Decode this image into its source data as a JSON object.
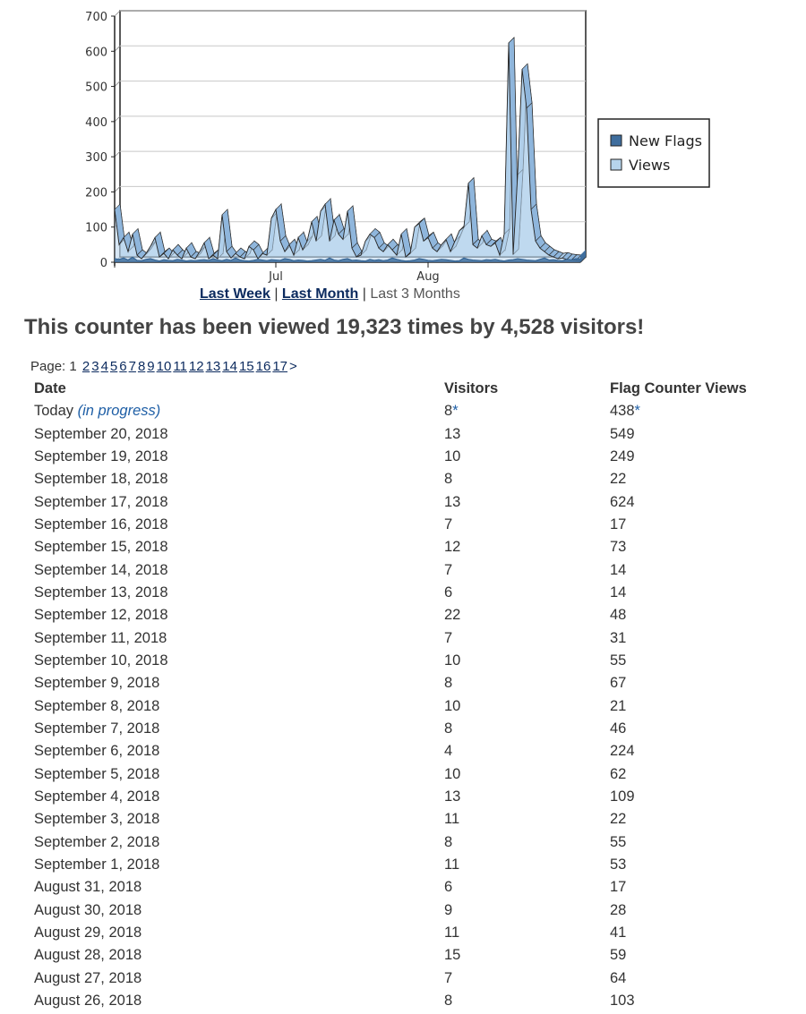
{
  "chart_data": {
    "type": "area",
    "ylim": [
      0,
      700
    ],
    "yticks": [
      0,
      100,
      200,
      300,
      400,
      500,
      600,
      700
    ],
    "xticks": [
      {
        "label": "Jul",
        "index": 36
      },
      {
        "label": "Aug",
        "index": 70
      }
    ],
    "legend_position": "right",
    "series": [
      {
        "name": "New Flags",
        "color": "#3f6e9e",
        "values": [
          10,
          8,
          12,
          6,
          14,
          5,
          4,
          8,
          10,
          6,
          3,
          7,
          5,
          4,
          8,
          6,
          3,
          5,
          4,
          6,
          7,
          5,
          10,
          6,
          4,
          8,
          5,
          12,
          6,
          4,
          3,
          5,
          8,
          6,
          4,
          7,
          6,
          5,
          10,
          8,
          4,
          6,
          5,
          3,
          4,
          6,
          8,
          5,
          12,
          6,
          4,
          8,
          10,
          5,
          6,
          4,
          3,
          8,
          5,
          7,
          4,
          6,
          12,
          8,
          5,
          3,
          4,
          6,
          10,
          8,
          5,
          4,
          6,
          8,
          7,
          5,
          3,
          4,
          12,
          8,
          6,
          5,
          4,
          7,
          6,
          8,
          5,
          3,
          6,
          7,
          10,
          8,
          6,
          5,
          4,
          8,
          12,
          6,
          7,
          5,
          4,
          8,
          6,
          10,
          9
        ]
      },
      {
        "name": "Views",
        "color": "#b6d4ec",
        "values": [
          150,
          50,
          70,
          30,
          80,
          20,
          10,
          25,
          45,
          70,
          15,
          25,
          10,
          35,
          20,
          10,
          40,
          15,
          10,
          30,
          55,
          10,
          20,
          10,
          135,
          30,
          12,
          25,
          15,
          10,
          45,
          35,
          10,
          25,
          20,
          125,
          150,
          60,
          30,
          50,
          20,
          70,
          35,
          60,
          115,
          60,
          145,
          165,
          60,
          120,
          80,
          65,
          145,
          40,
          15,
          20,
          60,
          80,
          70,
          40,
          30,
          50,
          35,
          20,
          80,
          15,
          25,
          100,
          110,
          60,
          70,
          40,
          30,
          50,
          65,
          30,
          60,
          90,
          100,
          225,
          50,
          40,
          75,
          50,
          45,
          55,
          20,
          80,
          624,
          22,
          249,
          549,
          438,
          150,
          60,
          40,
          30,
          20,
          15,
          10,
          12,
          8,
          6,
          5,
          4
        ]
      }
    ]
  },
  "range_links": {
    "last_week": "Last Week",
    "sep1": "|",
    "last_month": "Last Month",
    "sep2": "|",
    "current": "Last 3 Months"
  },
  "summary": "This counter has been viewed 19,323 times by 4,528 visitors!",
  "pager": {
    "label": "Page:",
    "current": "1",
    "pages": [
      "2",
      "3",
      "4",
      "5",
      "6",
      "7",
      "8",
      "9",
      "10",
      "11",
      "12",
      "13",
      "14",
      "15",
      "16",
      "17"
    ],
    "next": ">"
  },
  "table": {
    "headers": {
      "date": "Date",
      "visitors": "Visitors",
      "views": "Flag Counter Views"
    },
    "today": {
      "date": "Today",
      "note": "(in progress)",
      "visitors": "8",
      "views": "438",
      "star": "*"
    },
    "rows": [
      {
        "date": "September 20, 2018",
        "visitors": "13",
        "views": "549"
      },
      {
        "date": "September 19, 2018",
        "visitors": "10",
        "views": "249"
      },
      {
        "date": "September 18, 2018",
        "visitors": "8",
        "views": "22"
      },
      {
        "date": "September 17, 2018",
        "visitors": "13",
        "views": "624"
      },
      {
        "date": "September 16, 2018",
        "visitors": "7",
        "views": "17"
      },
      {
        "date": "September 15, 2018",
        "visitors": "12",
        "views": "73"
      },
      {
        "date": "September 14, 2018",
        "visitors": "7",
        "views": "14"
      },
      {
        "date": "September 13, 2018",
        "visitors": "6",
        "views": "14"
      },
      {
        "date": "September 12, 2018",
        "visitors": "22",
        "views": "48"
      },
      {
        "date": "September 11, 2018",
        "visitors": "7",
        "views": "31"
      },
      {
        "date": "September 10, 2018",
        "visitors": "10",
        "views": "55"
      },
      {
        "date": "September 9, 2018",
        "visitors": "8",
        "views": "67"
      },
      {
        "date": "September 8, 2018",
        "visitors": "10",
        "views": "21"
      },
      {
        "date": "September 7, 2018",
        "visitors": "8",
        "views": "46"
      },
      {
        "date": "September 6, 2018",
        "visitors": "4",
        "views": "224"
      },
      {
        "date": "September 5, 2018",
        "visitors": "10",
        "views": "62"
      },
      {
        "date": "September 4, 2018",
        "visitors": "13",
        "views": "109"
      },
      {
        "date": "September 3, 2018",
        "visitors": "11",
        "views": "22"
      },
      {
        "date": "September 2, 2018",
        "visitors": "8",
        "views": "55"
      },
      {
        "date": "September 1, 2018",
        "visitors": "11",
        "views": "53"
      },
      {
        "date": "August 31, 2018",
        "visitors": "6",
        "views": "17"
      },
      {
        "date": "August 30, 2018",
        "visitors": "9",
        "views": "28"
      },
      {
        "date": "August 29, 2018",
        "visitors": "11",
        "views": "41"
      },
      {
        "date": "August 28, 2018",
        "visitors": "15",
        "views": "59"
      },
      {
        "date": "August 27, 2018",
        "visitors": "7",
        "views": "64"
      },
      {
        "date": "August 26, 2018",
        "visitors": "8",
        "views": "103"
      }
    ]
  }
}
